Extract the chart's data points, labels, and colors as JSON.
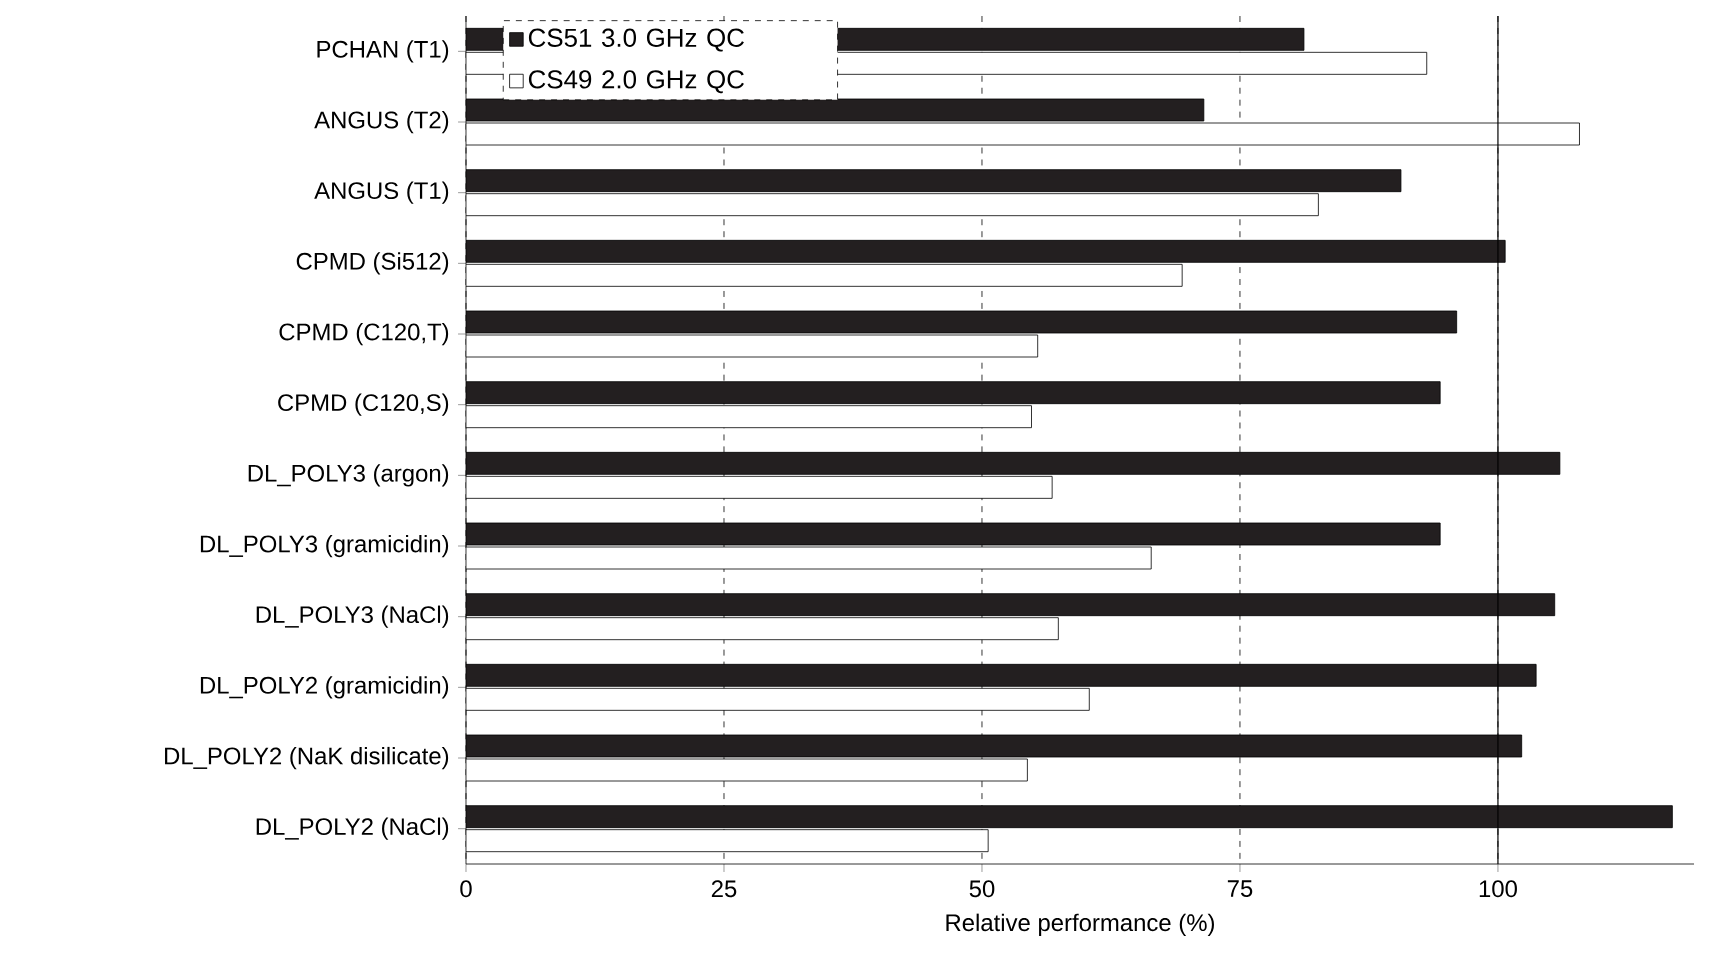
{
  "chart_data": {
    "type": "bar",
    "orientation": "horizontal",
    "xlabel": "Relative performance (%)",
    "categories": [
      "PCHAN (T1)",
      "ANGUS (T2)",
      "ANGUS (T1)",
      "CPMD (Si512)",
      "CPMD (C120,T)",
      "CPMD (C120,S)",
      "DL_POLY3 (argon)",
      "DL_POLY3 (gramicidin)",
      "DL_POLY3 (NaCl)",
      "DL_POLY2 (gramicidin)",
      "DL_POLY2 (NaK disilicate)",
      "DL_POLY2 (NaCl)"
    ],
    "series": [
      {
        "name": "CS51 3.0 GHz QC",
        "color": "#231f20",
        "values": [
          81.2,
          71.5,
          90.6,
          100.7,
          96.0,
          94.4,
          106.0,
          94.4,
          105.5,
          103.7,
          102.3,
          116.9
        ]
      },
      {
        "name": "CS49 2.0 GHz QC",
        "color": "#ffffff",
        "values": [
          93.1,
          107.9,
          82.6,
          69.4,
          55.4,
          54.8,
          56.8,
          66.4,
          57.4,
          60.4,
          54.4,
          50.6
        ]
      }
    ],
    "xlim": [
      0,
      119
    ],
    "xticks": [
      0,
      25,
      50,
      75,
      100
    ],
    "grid": "x",
    "legend": "top left",
    "ref_lines": [
      {
        "axis": "x",
        "value": 100,
        "line_style": "solid"
      }
    ]
  }
}
